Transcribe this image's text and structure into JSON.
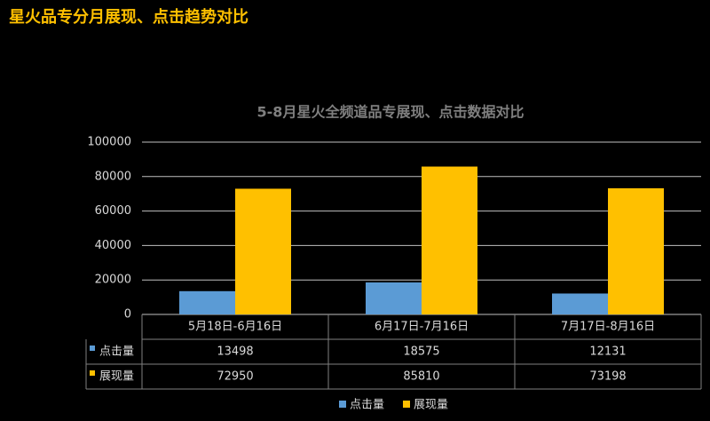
{
  "header": {
    "title": "星火品专分月展现、点击趋势对比"
  },
  "chart_data": {
    "type": "bar",
    "title": "5-8月星火全频道品专展现、点击数据对比",
    "categories": [
      "5月18日-6月16日",
      "6月17日-7月16日",
      "7月17日-8月16日"
    ],
    "series": [
      {
        "name": "点击量",
        "color": "#5b9bd5",
        "values": [
          13498,
          18575,
          12131
        ]
      },
      {
        "name": "展现量",
        "color": "#ffc000",
        "values": [
          72950,
          85810,
          73198
        ]
      }
    ],
    "ylim": [
      0,
      100000
    ],
    "yticks": [
      0,
      20000,
      40000,
      60000,
      80000,
      100000
    ],
    "grid": true,
    "legend": "bottom",
    "data_table": true
  }
}
